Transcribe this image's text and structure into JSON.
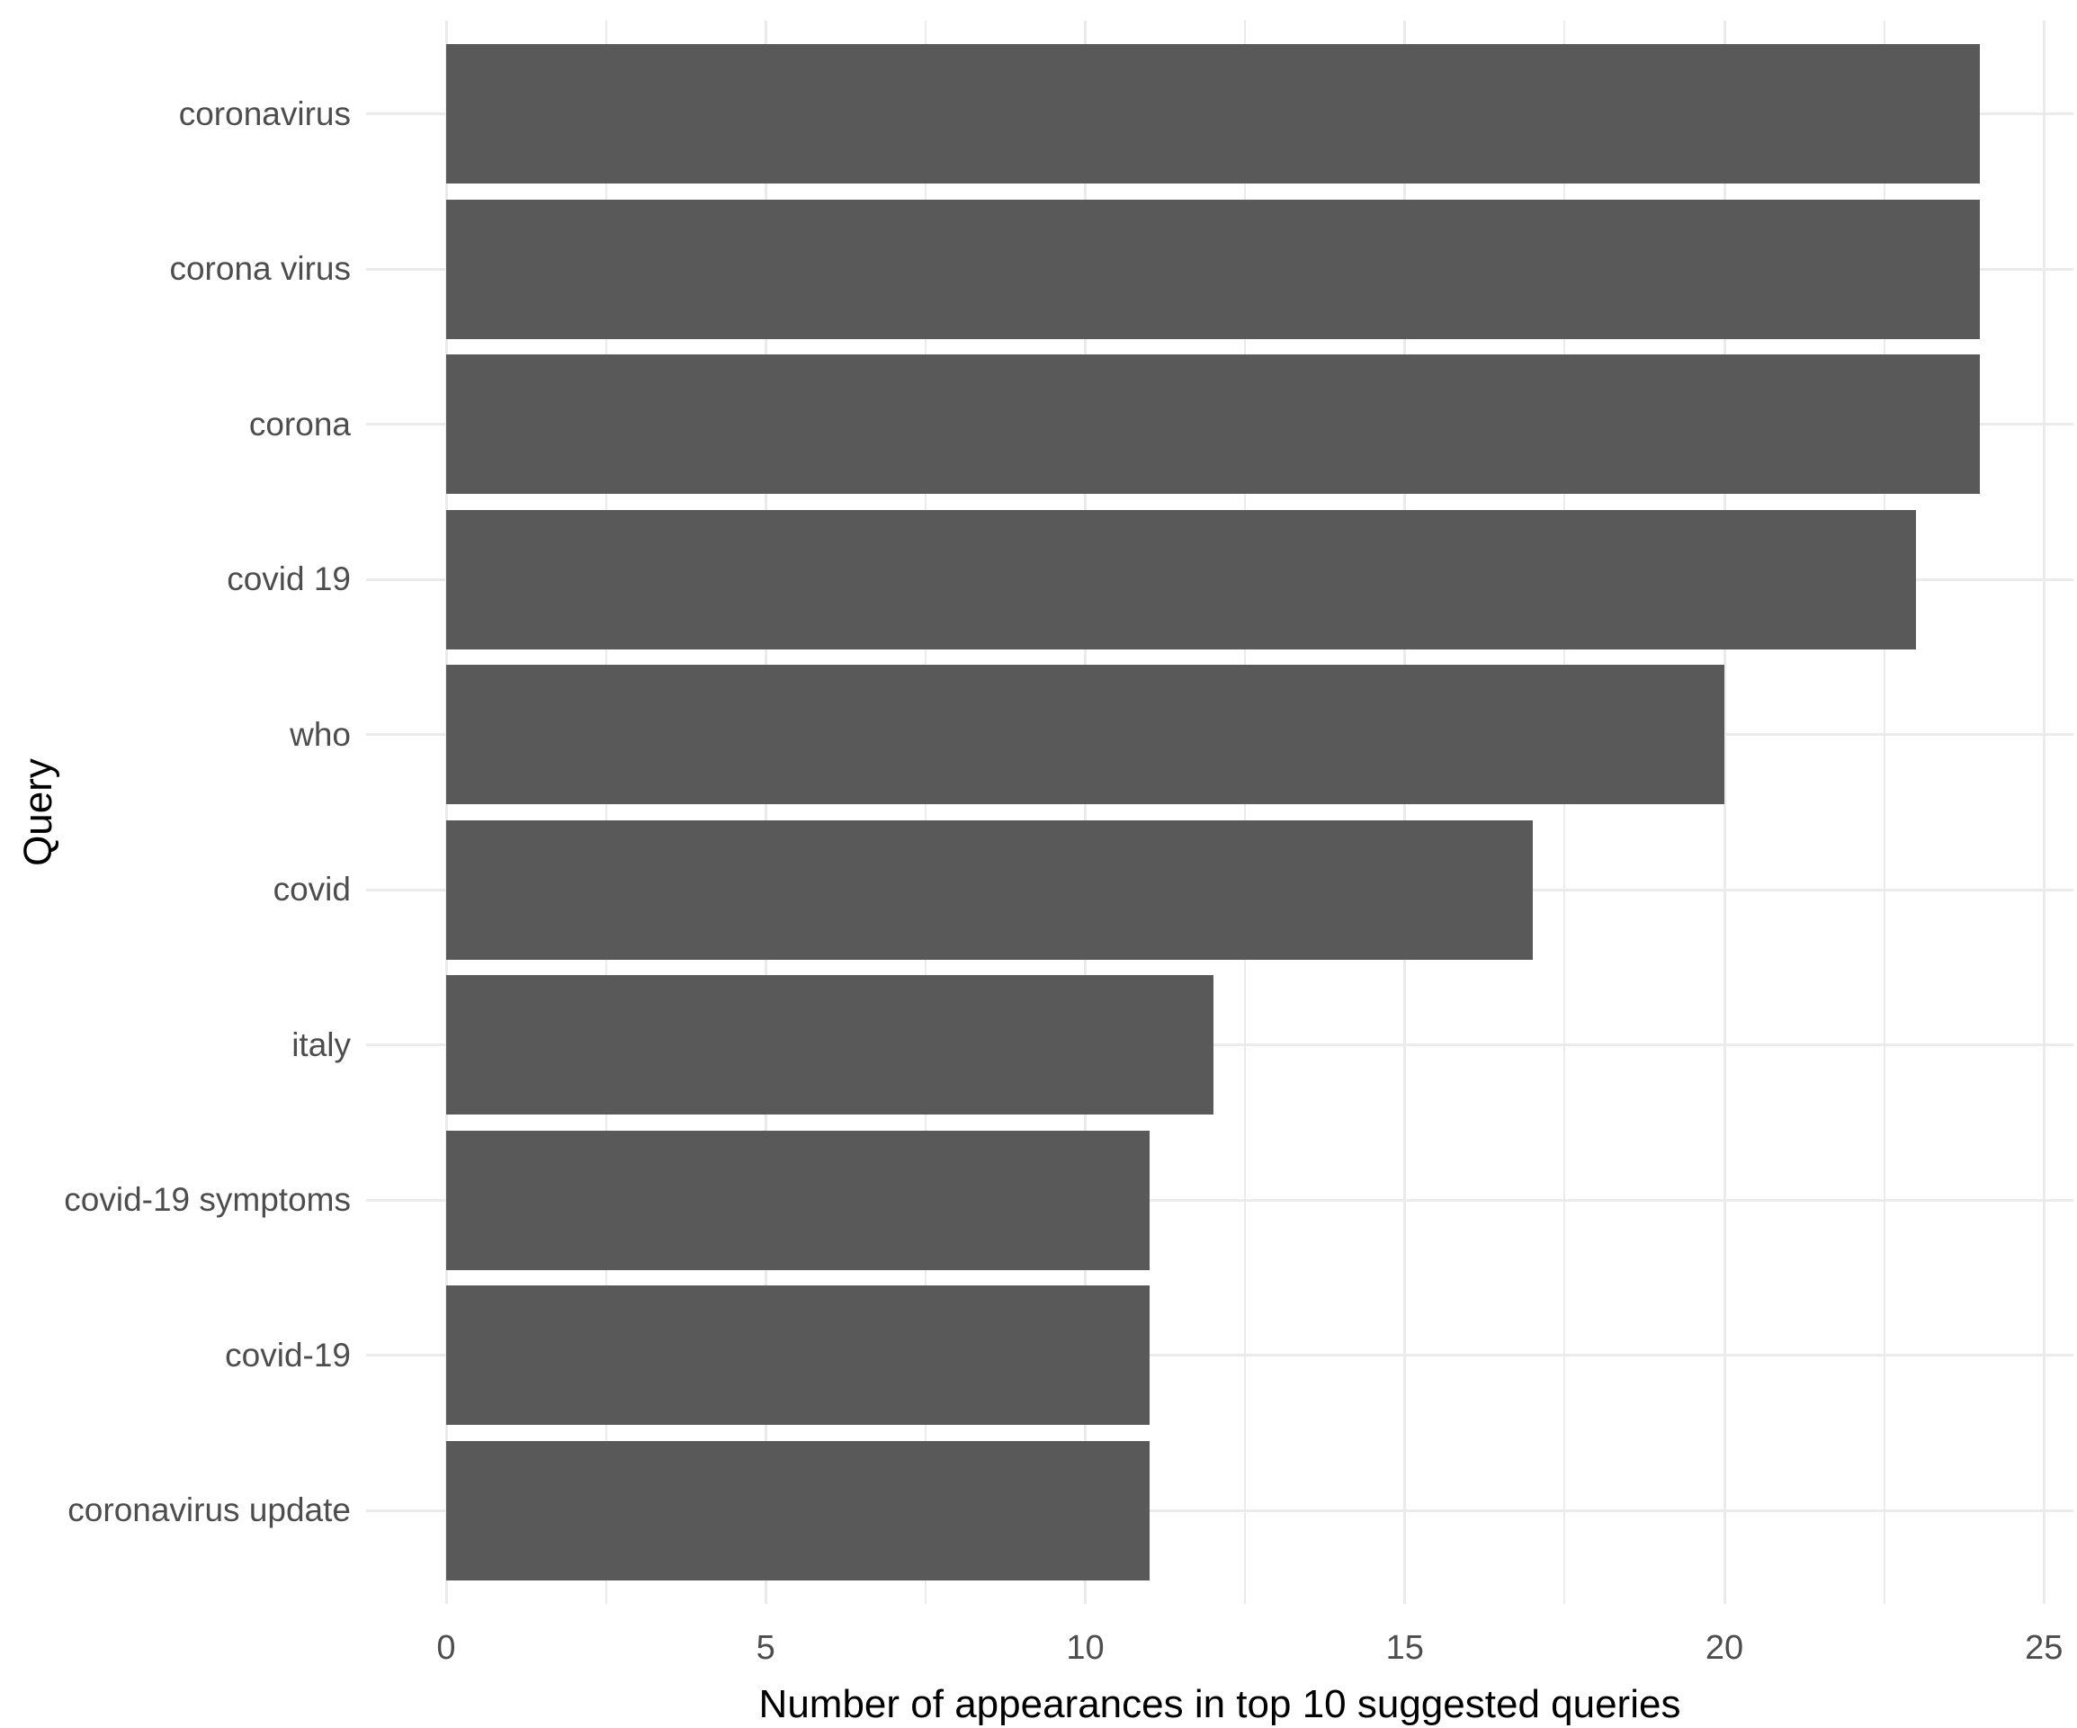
{
  "chart_data": {
    "type": "bar",
    "orientation": "horizontal",
    "title": "",
    "xlabel": "Number of appearances in top 10 suggested queries",
    "ylabel": "Query",
    "categories": [
      "coronavirus",
      "corona virus",
      "corona",
      "covid 19",
      "who",
      "covid",
      "italy",
      "covid-19 symptoms",
      "covid-19",
      "coronavirus update"
    ],
    "values": [
      24,
      24,
      24,
      23,
      20,
      17,
      12,
      11,
      11,
      11
    ],
    "xlim": [
      0,
      25
    ],
    "x_major_ticks": [
      0,
      5,
      10,
      15,
      20,
      25
    ],
    "x_major_tick_labels": [
      "0",
      "5",
      "10",
      "15",
      "20",
      "25"
    ],
    "x_minor_ticks": [
      2.5,
      7.5,
      12.5,
      17.5,
      22.5
    ],
    "grid": "on",
    "legend": "none",
    "colors": {
      "bar": "#595959",
      "grid": "#EBEBEB",
      "tick_label": "#4D4D4D",
      "axis_title": "#000000",
      "background": "#FFFFFF"
    }
  }
}
